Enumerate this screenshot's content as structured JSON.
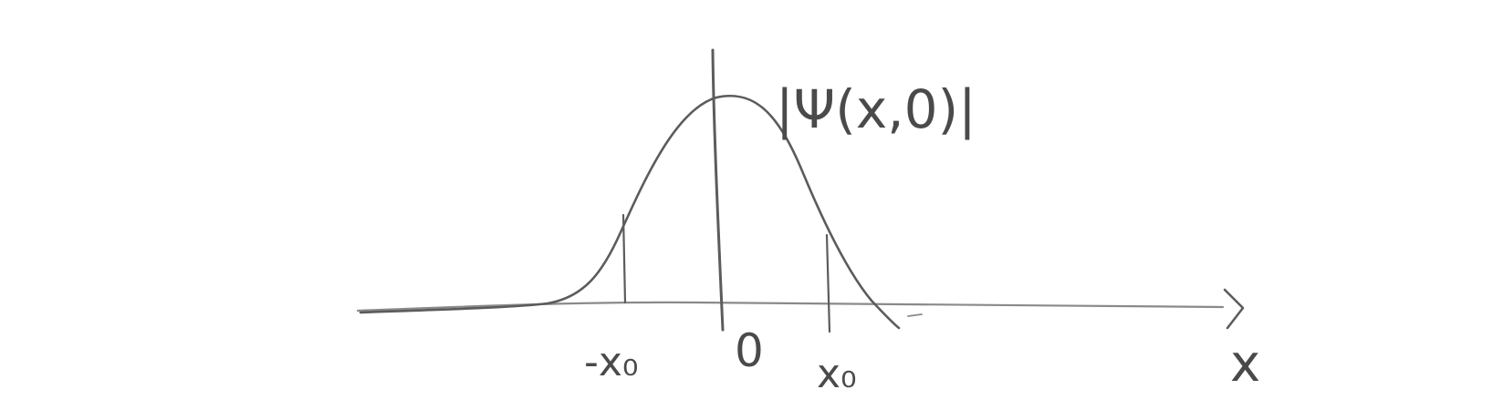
{
  "diagram": {
    "function_label": "|Ψ(x,0)|",
    "axis_label": "x",
    "ticks": {
      "left": "-x₀",
      "origin": "0",
      "right": "x₀"
    }
  }
}
